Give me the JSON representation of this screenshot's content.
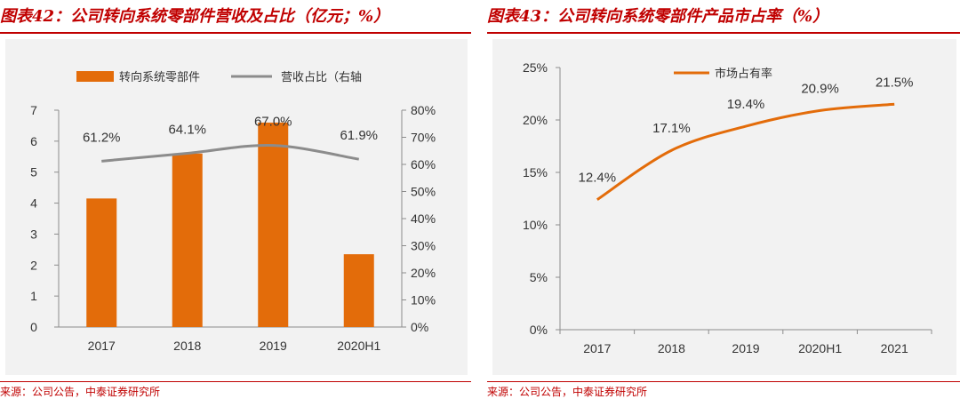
{
  "left": {
    "figure_title": "图表42：公司转向系统零部件营收及占比（亿元；%）",
    "source": "来源：公司公告，中泰证券研究所",
    "colors": {
      "bar": "#E36C0A",
      "line": "#8C8C8C",
      "title": "#C00000"
    },
    "legend": {
      "bar_label": "转向系统零部件",
      "line_label": "营收占比（右轴"
    },
    "y_left_ticks": [
      "0",
      "1",
      "2",
      "3",
      "4",
      "5",
      "6",
      "7"
    ],
    "y_right_ticks": [
      "0%",
      "10%",
      "20%",
      "30%",
      "40%",
      "50%",
      "60%",
      "70%",
      "80%"
    ],
    "data_labels": [
      "61.2%",
      "64.1%",
      "67.0%",
      "61.9%"
    ]
  },
  "right": {
    "figure_title": "图表43：公司转向系统零部件产品市占率（%）",
    "source": "来源：公司公告，中泰证券研究所",
    "colors": {
      "line": "#E36C0A",
      "title": "#C00000"
    },
    "legend": {
      "line_label": "市场占有率"
    },
    "y_ticks": [
      "0%",
      "5%",
      "10%",
      "15%",
      "20%",
      "25%"
    ],
    "data_labels": [
      "12.4%",
      "17.1%",
      "19.4%",
      "20.9%",
      "21.5%"
    ]
  },
  "chart_data": [
    {
      "type": "bar",
      "categories": [
        "2017",
        "2018",
        "2019",
        "2020H1"
      ],
      "series": [
        {
          "name": "转向系统零部件",
          "type": "bar",
          "axis": "left",
          "values": [
            4.15,
            5.6,
            6.6,
            2.35
          ]
        },
        {
          "name": "营收占比（右轴",
          "type": "line",
          "axis": "right",
          "values": [
            61.2,
            64.1,
            67.0,
            61.9
          ]
        }
      ],
      "ylim": [
        0,
        7
      ],
      "y2lim": [
        0,
        80
      ],
      "legend": "top-center",
      "grid": false
    },
    {
      "type": "line",
      "categories": [
        "2017",
        "2018",
        "2019",
        "2020H1",
        "2021"
      ],
      "series": [
        {
          "name": "市场占有率",
          "values": [
            12.4,
            17.1,
            19.4,
            20.9,
            21.5
          ]
        }
      ],
      "ylim": [
        0,
        25
      ],
      "legend": "top-left",
      "grid": false
    }
  ]
}
